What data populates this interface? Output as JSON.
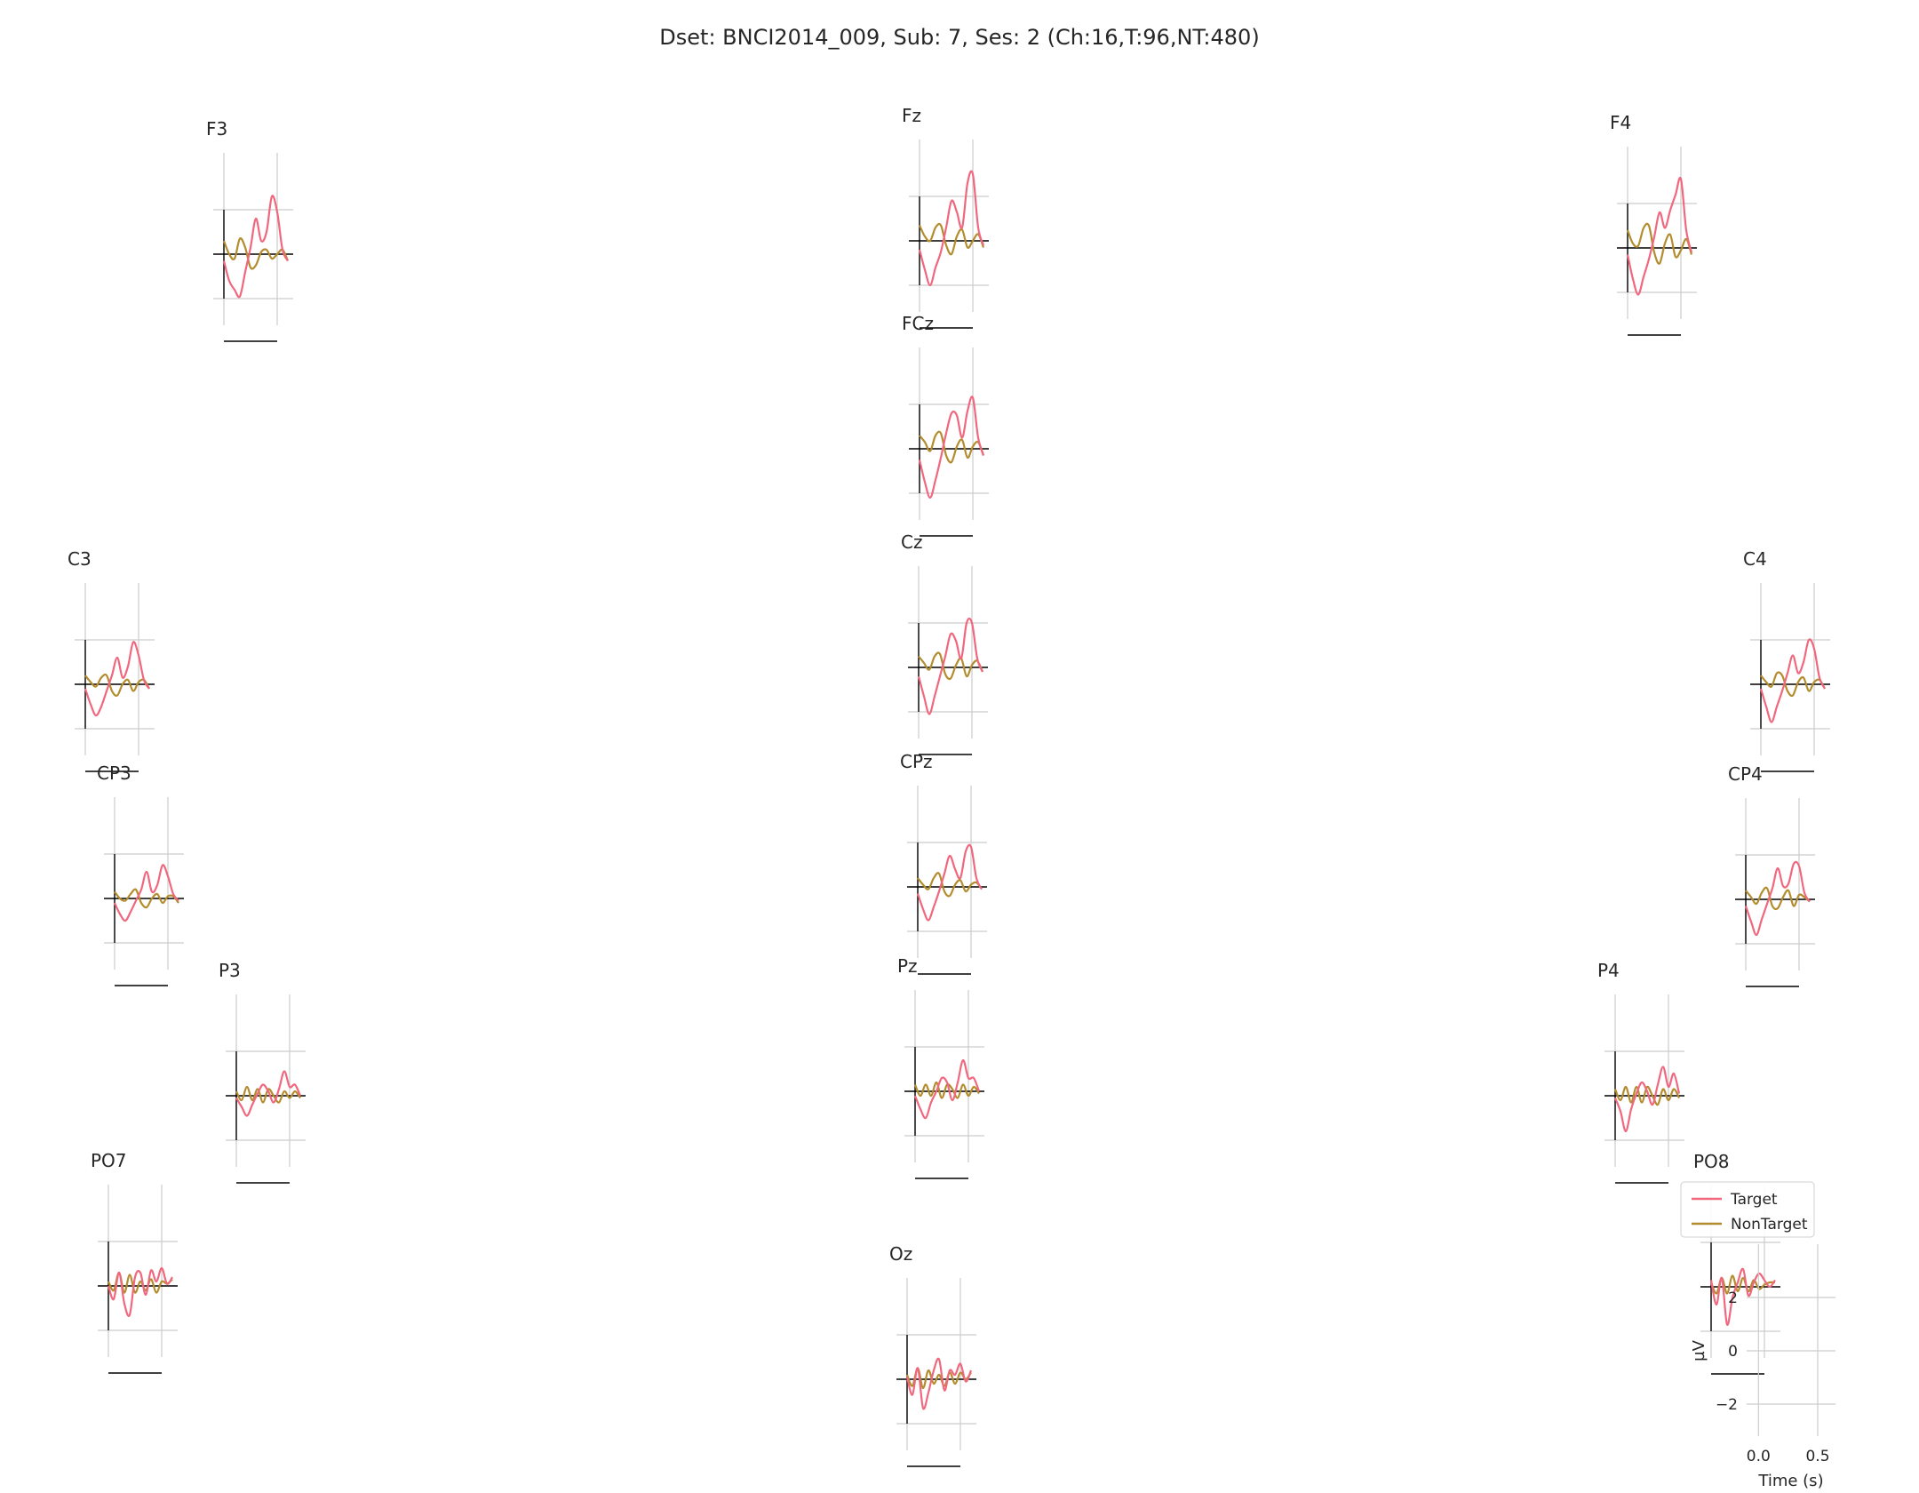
{
  "title": "Dset: BNCI2014_009, Sub: 7, Ses: 2 (Ch:16,T:96,NT:480)",
  "colors": {
    "target": "#f0677e",
    "nontarget": "#b38c2e",
    "grid": "#cccccc",
    "axis": "#000000"
  },
  "chart_data": {
    "type": "line",
    "title": "Dset: BNCI2014_009, Sub: 7, Ses: 2 (Ch:16,T:96,NT:480)",
    "xlabel": "Time (s)",
    "ylabel": "µV",
    "xlim": [
      -0.1,
      0.65
    ],
    "ylim": [
      -3.2,
      4.0
    ],
    "xticks": [
      0.0,
      0.5
    ],
    "xtick_labels": [
      "0.0",
      "0.5"
    ],
    "yticks": [
      -2,
      0,
      2
    ],
    "ytick_labels": [
      "−2",
      "0",
      "2"
    ],
    "grid": true,
    "legend": {
      "entries": [
        "Target",
        "NonTarget"
      ],
      "placement": "upper-right of PO8 panel"
    },
    "x": [
      0.0,
      0.05,
      0.1,
      0.15,
      0.2,
      0.25,
      0.3,
      0.35,
      0.4,
      0.45,
      0.5,
      0.55,
      0.6
    ],
    "channels": [
      {
        "name": "F3",
        "target": [
          -0.3,
          -1.2,
          -1.6,
          -1.9,
          -0.8,
          0.3,
          1.6,
          0.6,
          1.0,
          2.6,
          1.9,
          0.2,
          -0.3
        ],
        "nontarget": [
          0.6,
          0.0,
          -0.2,
          0.7,
          0.3,
          -0.6,
          -0.5,
          0.1,
          0.2,
          -0.2,
          0.0,
          0.2,
          -0.3
        ]
      },
      {
        "name": "Fz",
        "target": [
          -0.4,
          -1.3,
          -2.0,
          -1.2,
          -0.5,
          0.6,
          1.8,
          1.3,
          0.6,
          2.6,
          3.0,
          0.6,
          -0.2
        ],
        "nontarget": [
          0.7,
          0.2,
          0.0,
          0.6,
          0.7,
          -0.2,
          -0.6,
          0.2,
          0.5,
          -0.3,
          0.0,
          0.3,
          -0.3
        ]
      },
      {
        "name": "F4",
        "target": [
          -0.3,
          -1.4,
          -2.1,
          -1.3,
          -0.5,
          0.5,
          1.6,
          0.9,
          1.7,
          2.4,
          3.1,
          0.8,
          -0.2
        ],
        "nontarget": [
          0.8,
          0.2,
          0.1,
          0.9,
          1.0,
          -0.2,
          -0.7,
          0.2,
          0.6,
          -0.4,
          -0.1,
          0.4,
          -0.3
        ]
      },
      {
        "name": "FCz",
        "target": [
          -0.5,
          -1.5,
          -2.2,
          -1.4,
          -0.4,
          0.7,
          1.6,
          1.5,
          0.5,
          1.7,
          2.3,
          0.5,
          -0.3
        ],
        "nontarget": [
          0.6,
          0.3,
          -0.1,
          0.6,
          0.7,
          -0.3,
          -0.6,
          0.1,
          0.4,
          -0.4,
          0.1,
          0.3,
          -0.3
        ]
      },
      {
        "name": "C3",
        "target": [
          -0.2,
          -0.9,
          -1.4,
          -1.0,
          -0.3,
          0.4,
          1.2,
          0.3,
          0.8,
          1.9,
          1.3,
          0.2,
          -0.2
        ],
        "nontarget": [
          0.4,
          0.1,
          -0.1,
          0.3,
          0.4,
          -0.3,
          -0.5,
          0.0,
          0.2,
          -0.3,
          0.1,
          0.2,
          -0.2
        ]
      },
      {
        "name": "Cz",
        "target": [
          -0.4,
          -1.3,
          -2.1,
          -1.3,
          -0.4,
          0.5,
          1.5,
          1.2,
          0.4,
          2.0,
          2.0,
          0.4,
          -0.2
        ],
        "nontarget": [
          0.5,
          0.2,
          -0.1,
          0.5,
          0.6,
          -0.3,
          -0.5,
          0.1,
          0.4,
          -0.4,
          0.1,
          0.3,
          -0.2
        ]
      },
      {
        "name": "C4",
        "target": [
          -0.2,
          -1.0,
          -1.7,
          -1.0,
          -0.3,
          0.5,
          1.3,
          0.5,
          1.0,
          2.0,
          1.6,
          0.3,
          -0.2
        ],
        "nontarget": [
          0.4,
          0.1,
          -0.1,
          0.5,
          0.4,
          -0.3,
          -0.5,
          0.1,
          0.3,
          -0.3,
          0.1,
          0.2,
          -0.2
        ]
      },
      {
        "name": "CP3",
        "target": [
          -0.2,
          -0.7,
          -1.0,
          -0.6,
          -0.1,
          0.4,
          1.2,
          0.3,
          0.6,
          1.5,
          1.0,
          0.2,
          -0.1
        ],
        "nontarget": [
          0.3,
          0.0,
          -0.1,
          0.2,
          0.4,
          -0.2,
          -0.4,
          0.0,
          0.2,
          -0.2,
          0.1,
          0.1,
          -0.2
        ]
      },
      {
        "name": "CPz",
        "target": [
          -0.3,
          -1.0,
          -1.5,
          -0.9,
          -0.2,
          0.6,
          1.4,
          0.8,
          0.4,
          1.6,
          1.8,
          0.4,
          -0.1
        ],
        "nontarget": [
          0.4,
          0.1,
          -0.1,
          0.4,
          0.6,
          -0.2,
          -0.4,
          0.1,
          0.3,
          -0.2,
          0.1,
          0.2,
          -0.1
        ]
      },
      {
        "name": "CP4",
        "target": [
          -0.3,
          -1.0,
          -1.6,
          -0.9,
          -0.2,
          0.5,
          1.4,
          0.6,
          0.7,
          1.6,
          1.5,
          0.3,
          -0.1
        ],
        "nontarget": [
          0.4,
          0.1,
          -0.2,
          0.3,
          0.5,
          -0.3,
          -0.4,
          0.1,
          0.4,
          -0.3,
          0.2,
          0.1,
          -0.1
        ]
      },
      {
        "name": "P3",
        "target": [
          -0.1,
          -0.5,
          -0.9,
          -0.4,
          0.1,
          0.5,
          0.2,
          -0.3,
          0.3,
          1.1,
          0.4,
          0.5,
          0.0
        ],
        "nontarget": [
          0.2,
          -0.2,
          0.4,
          -0.2,
          0.3,
          -0.3,
          0.3,
          0.0,
          -0.3,
          0.2,
          -0.1,
          0.2,
          -0.1
        ]
      },
      {
        "name": "Pz",
        "target": [
          -0.2,
          -0.8,
          -1.2,
          -0.5,
          0.0,
          0.6,
          0.4,
          -0.4,
          0.4,
          1.4,
          0.6,
          0.6,
          0.0
        ],
        "nontarget": [
          0.3,
          -0.2,
          0.3,
          -0.2,
          0.4,
          -0.3,
          0.3,
          0.1,
          -0.3,
          0.3,
          -0.2,
          0.2,
          -0.1
        ]
      },
      {
        "name": "P4",
        "target": [
          -0.1,
          -0.7,
          -1.6,
          -0.6,
          0.1,
          0.6,
          0.2,
          -0.4,
          0.5,
          1.3,
          0.4,
          1.0,
          0.1
        ],
        "nontarget": [
          0.3,
          -0.2,
          0.4,
          -0.3,
          0.4,
          -0.3,
          0.4,
          0.0,
          -0.4,
          0.3,
          -0.2,
          0.3,
          -0.1
        ]
      },
      {
        "name": "PO7",
        "target": [
          0.0,
          -0.6,
          0.6,
          -0.8,
          -1.3,
          0.4,
          0.6,
          -0.4,
          0.7,
          0.2,
          0.8,
          0.1,
          0.4
        ],
        "nontarget": [
          0.2,
          -0.2,
          0.6,
          -0.3,
          0.5,
          -0.3,
          0.2,
          -0.2,
          0.3,
          -0.3,
          0.2,
          0.1,
          0.3
        ]
      },
      {
        "name": "Oz",
        "target": [
          0.1,
          -0.7,
          0.5,
          -1.3,
          -0.6,
          0.4,
          0.9,
          -0.5,
          0.4,
          0.2,
          0.7,
          -0.1,
          0.4
        ],
        "nontarget": [
          0.2,
          -0.3,
          0.5,
          -0.4,
          0.4,
          -0.2,
          0.2,
          -0.3,
          0.3,
          -0.2,
          0.3,
          0.0,
          0.3
        ]
      },
      {
        "name": "PO8",
        "target": [
          0.3,
          -0.8,
          0.4,
          -1.7,
          -0.5,
          0.2,
          0.8,
          -0.4,
          0.2,
          0.6,
          0.3,
          0.0,
          0.3
        ],
        "nontarget": [
          0.2,
          -0.3,
          0.4,
          -0.3,
          0.5,
          -0.2,
          0.4,
          -0.2,
          0.3,
          -0.1,
          0.1,
          0.2,
          0.2
        ]
      }
    ]
  }
}
